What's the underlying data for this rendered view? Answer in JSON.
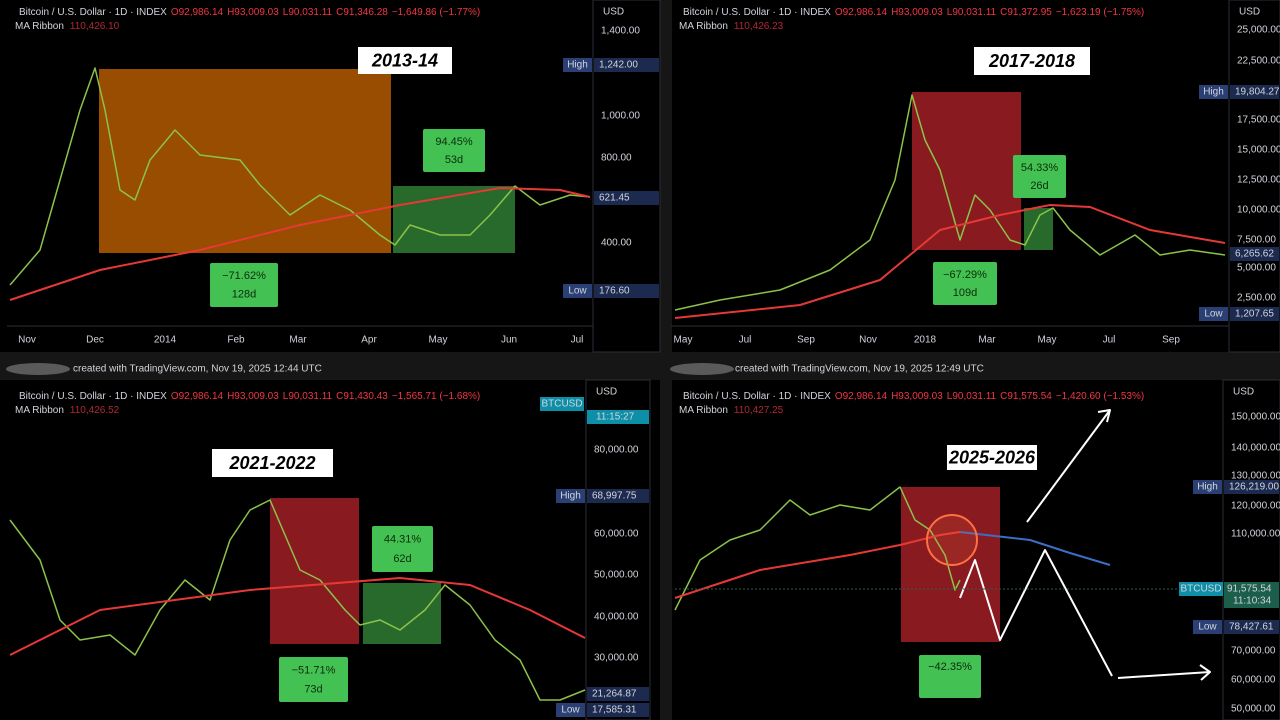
{
  "panels": [
    {
      "header": {
        "symbol": "Bitcoin / U.S. Dollar · 1D · INDEX",
        "open": "O92,986.14",
        "high": "H93,009.03",
        "low": "L90,031.11",
        "close": "C91,346.28",
        "change": "−1,649.86 (−1.77%)",
        "indicator": "MA Ribbon",
        "indicator_value": "110,426.10"
      },
      "currency": "USD",
      "title": "2013-14",
      "y_labels": [
        "1,400.00",
        "1,000.00",
        "800.00",
        "400.00"
      ],
      "x_labels": [
        "Nov",
        "Dec",
        "2014",
        "Feb",
        "Mar",
        "Apr",
        "May",
        "Jun",
        "Jul"
      ],
      "badges": {
        "high_label": "High",
        "high": "1,242.00",
        "low_label": "Low",
        "low": "176.60",
        "last": "621.45"
      },
      "annotations": [
        {
          "change": "94.45%",
          "duration": "53d"
        },
        {
          "change": "−71.62%",
          "duration": "128d"
        }
      ]
    },
    {
      "header": {
        "symbol": "Bitcoin / U.S. Dollar · 1D · INDEX",
        "open": "O92,986.14",
        "high": "H93,009.03",
        "low": "L90,031.11",
        "close": "C91,372.95",
        "change": "−1,623.19 (−1.75%)",
        "indicator": "MA Ribbon",
        "indicator_value": "110,426.23"
      },
      "currency": "USD",
      "title": "2017-2018",
      "y_labels": [
        "25,000.00",
        "22,500.00",
        "17,500.00",
        "15,000.00",
        "12,500.00",
        "10,000.00",
        "7,500.00",
        "5,000.00",
        "2,500.00"
      ],
      "x_labels": [
        "May",
        "Jul",
        "Sep",
        "Nov",
        "2018",
        "Mar",
        "May",
        "Jul",
        "Sep"
      ],
      "badges": {
        "high_label": "High",
        "high": "19,804.27",
        "low_label": "Low",
        "low": "1,207.65",
        "last": "6,265.62"
      },
      "annotations": [
        {
          "change": "54.33%",
          "duration": "26d"
        },
        {
          "change": "−67.29%",
          "duration": "109d"
        }
      ]
    },
    {
      "header": {
        "symbol": "Bitcoin / U.S. Dollar · 1D · INDEX",
        "open": "O92,986.14",
        "high": "H93,009.03",
        "low": "L90,031.11",
        "close": "C91,430.43",
        "change": "−1,565.71 (−1.68%)",
        "indicator": "MA Ribbon",
        "indicator_value": "110,426.52"
      },
      "currency": "USD",
      "title": "2021-2022",
      "y_labels": [
        "80,000.00",
        "60,000.00",
        "50,000.00",
        "40,000.00",
        "30,000.00"
      ],
      "x_labels": [],
      "badges": {
        "symbol": "BTCUSD",
        "time": "11:15:27",
        "high_label": "High",
        "high": "68,997.75",
        "low_label": "Low",
        "low": "17,585.31",
        "last": "21,264.87"
      },
      "annotations": [
        {
          "change": "44.31%",
          "duration": "62d"
        },
        {
          "change": "−51.71%",
          "duration": "73d"
        }
      ]
    },
    {
      "header": {
        "symbol": "Bitcoin / U.S. Dollar · 1D · INDEX",
        "open": "O92,986.14",
        "high": "H93,009.03",
        "low": "L90,031.11",
        "close": "C91,575.54",
        "change": "−1,420.60 (−1.53%)",
        "indicator": "MA Ribbon",
        "indicator_value": "110,427.25"
      },
      "currency": "USD",
      "title": "2025-2026",
      "y_labels": [
        "150,000.00",
        "140,000.00",
        "130,000.00",
        "120,000.00",
        "110,000.00",
        "70,000.00",
        "60,000.00",
        "50,000.00"
      ],
      "x_labels": [],
      "badges": {
        "symbol": "BTCUSD",
        "time": "11:10:34",
        "high_label": "High",
        "high": "126,219.00",
        "low_label": "Low",
        "low": "78,427.61",
        "last": "91,575.54"
      },
      "annotations": [
        {
          "change": "−42.35%"
        }
      ]
    }
  ],
  "footers": [
    "created with TradingView.com, Nov 19, 2025 12:44 UTC",
    "created with TradingView.com, Nov 19, 2025 12:49 UTC"
  ]
}
